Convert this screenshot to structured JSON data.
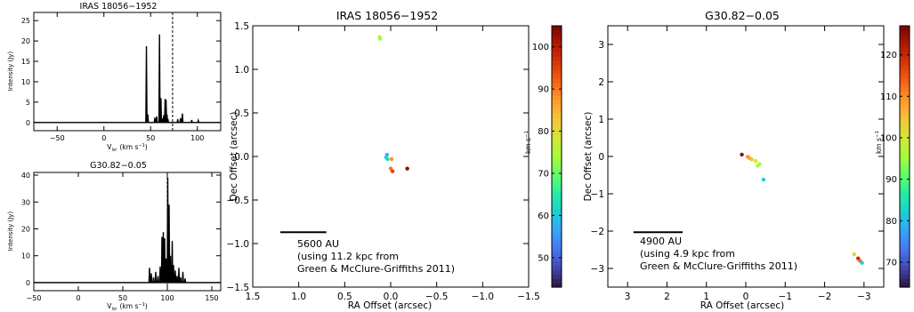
{
  "chart_data": [
    {
      "id": "spec_iras",
      "type": "line",
      "title": "IRAS 18056−1952",
      "xlabel_main": "V",
      "xlabel_sub": "lsr",
      "xlabel_units": "(km s",
      "xlabel_sup": "−1",
      "xlabel_close": ")",
      "ylabel": "Intensity (Jy)",
      "xlim": [
        -75,
        125
      ],
      "ylim": [
        -2,
        27
      ],
      "xticks": [
        -50,
        0,
        50,
        100
      ],
      "xtick_labels": [
        "−50",
        "0",
        "50",
        "100"
      ],
      "yticks": [
        0,
        5,
        10,
        15,
        20,
        25
      ],
      "ytick_labels": [
        "0",
        "5",
        "10",
        "15",
        "20",
        "25"
      ],
      "vline": 73.5,
      "peaks": [
        [
          45.5,
          18.7
        ],
        [
          47.0,
          2.0
        ],
        [
          54.5,
          1.2
        ],
        [
          56.5,
          1.5
        ],
        [
          59.5,
          21.6
        ],
        [
          61.0,
          6.0
        ],
        [
          62.5,
          1.0
        ],
        [
          64.0,
          1.8
        ],
        [
          65.5,
          5.8
        ],
        [
          66.5,
          5.6
        ],
        [
          67.5,
          2.0
        ],
        [
          68.5,
          0.9
        ],
        [
          79.0,
          0.8
        ],
        [
          82.0,
          1.1
        ],
        [
          84.0,
          2.2
        ],
        [
          94.0,
          0.6
        ],
        [
          101.0,
          0.5
        ]
      ]
    },
    {
      "id": "spec_g30",
      "type": "line",
      "title": "G30.82−0.05",
      "xlabel_main": "V",
      "xlabel_sub": "lsr",
      "xlabel_units": "(km s",
      "xlabel_sup": "−1",
      "xlabel_close": ")",
      "ylabel": "Intensity (Jy)",
      "xlim": [
        -50,
        160
      ],
      "ylim": [
        -3,
        41
      ],
      "xticks": [
        -50,
        0,
        50,
        100,
        150
      ],
      "xtick_labels": [
        "−50",
        "0",
        "50",
        "100",
        "150"
      ],
      "yticks": [
        0,
        10,
        20,
        30,
        40
      ],
      "ytick_labels": [
        "0",
        "10",
        "20",
        "30",
        "40"
      ],
      "vline": 100,
      "peaks": [
        [
          80.0,
          5.5
        ],
        [
          82.0,
          3.5
        ],
        [
          84.5,
          2.0
        ],
        [
          87.0,
          4.0
        ],
        [
          89.5,
          2.5
        ],
        [
          92.0,
          6.0
        ],
        [
          94.0,
          17.0
        ],
        [
          95.5,
          18.8
        ],
        [
          97.0,
          16.5
        ],
        [
          98.5,
          9.0
        ],
        [
          100.5,
          39.0
        ],
        [
          102.0,
          29.0
        ],
        [
          103.5,
          10.0
        ],
        [
          105.5,
          15.5
        ],
        [
          107.0,
          6.5
        ],
        [
          109.0,
          4.5
        ],
        [
          111.0,
          2.5
        ],
        [
          113.0,
          5.5
        ],
        [
          115.0,
          2.0
        ],
        [
          117.5,
          4.0
        ],
        [
          120.0,
          1.5
        ]
      ]
    },
    {
      "id": "map_iras",
      "type": "scatter",
      "title": "IRAS 18056−1952",
      "xlabel": "RA Offset (arcsec)",
      "ylabel": "Dec Offset (arcsec)",
      "xlim": [
        1.5,
        -1.5
      ],
      "ylim": [
        -1.5,
        1.5
      ],
      "xticks": [
        1.5,
        1.0,
        0.5,
        0.0,
        -0.5,
        -1.0,
        -1.5
      ],
      "xtick_labels": [
        "1.5",
        "1.0",
        "0.5",
        "0.0",
        "−0.5",
        "−1.0",
        "−1.5"
      ],
      "yticks": [
        -1.5,
        -1.0,
        -0.5,
        0.0,
        0.5,
        1.0,
        1.5
      ],
      "ytick_labels": [
        "−1.5",
        "−1.0",
        "−0.5",
        "0.0",
        "0.5",
        "1.0",
        "1.5"
      ],
      "points": [
        {
          "x": 0.12,
          "y": 1.37,
          "v": 75
        },
        {
          "x": 0.115,
          "y": 1.35,
          "v": 74
        },
        {
          "x": 0.04,
          "y": 0.02,
          "v": 58
        },
        {
          "x": 0.05,
          "y": -0.01,
          "v": 60
        },
        {
          "x": 0.035,
          "y": -0.03,
          "v": 62
        },
        {
          "x": -0.01,
          "y": -0.03,
          "v": 88
        },
        {
          "x": 0.0,
          "y": -0.14,
          "v": 90
        },
        {
          "x": -0.02,
          "y": -0.17,
          "v": 95
        },
        {
          "x": -0.18,
          "y": -0.14,
          "v": 103
        }
      ],
      "scalebar": {
        "ra_start": 1.2,
        "ra_end": 0.7,
        "dec": -0.87
      },
      "note_lines": [
        "5600 AU",
        "(using 11.2 kpc from",
        "Green & McClure-Griffiths 2011)"
      ],
      "colorbar": {
        "label_main": "km s",
        "label_sup": "−1",
        "vmin": 43,
        "vmax": 105,
        "ticks": [
          50,
          60,
          70,
          80,
          90,
          100
        ],
        "tick_labels": [
          "50",
          "60",
          "70",
          "80",
          "90",
          "100"
        ]
      }
    },
    {
      "id": "map_g30",
      "type": "scatter",
      "title": "G30.82−0.05",
      "xlabel": "RA Offset (arcsec)",
      "ylabel": "Dec Offset (arcsec)",
      "xlim": [
        3.5,
        -3.5
      ],
      "ylim": [
        -3.5,
        3.5
      ],
      "xticks": [
        3,
        2,
        1,
        0,
        -1,
        -2,
        -3
      ],
      "xtick_labels": [
        "3",
        "2",
        "1",
        "0",
        "−1",
        "−2",
        "−3"
      ],
      "yticks": [
        -3,
        -2,
        -1,
        0,
        1,
        2,
        3
      ],
      "ytick_labels": [
        "−3",
        "−2",
        "−1",
        "0",
        "1",
        "2",
        "3"
      ],
      "points": [
        {
          "x": 0.1,
          "y": 0.05,
          "v": 125
        },
        {
          "x": -0.05,
          "y": -0.01,
          "v": 110
        },
        {
          "x": -0.1,
          "y": -0.05,
          "v": 108
        },
        {
          "x": -0.15,
          "y": -0.08,
          "v": 105
        },
        {
          "x": -0.25,
          "y": -0.12,
          "v": 100
        },
        {
          "x": -0.35,
          "y": -0.2,
          "v": 98
        },
        {
          "x": -0.3,
          "y": -0.25,
          "v": 95
        },
        {
          "x": -0.45,
          "y": -0.62,
          "v": 82
        },
        {
          "x": -2.75,
          "y": -2.62,
          "v": 103
        },
        {
          "x": -2.85,
          "y": -2.73,
          "v": 120
        },
        {
          "x": -2.9,
          "y": -2.8,
          "v": 113
        },
        {
          "x": -2.95,
          "y": -2.85,
          "v": 82
        }
      ],
      "scalebar": {
        "ra_start": 2.85,
        "ra_end": 1.6,
        "dec": -2.03
      },
      "note_lines": [
        "4900 AU",
        "(using 4.9 kpc from",
        "Green & McClure-Griffiths 2011)"
      ],
      "colorbar": {
        "label_main": "km s",
        "label_sup": "−1",
        "vmin": 64,
        "vmax": 127,
        "ticks": [
          70,
          80,
          90,
          100,
          110,
          120
        ],
        "tick_labels": [
          "70",
          "80",
          "90",
          "100",
          "110",
          "120"
        ]
      }
    }
  ],
  "colormap": [
    "#30123b",
    "#4145ab",
    "#4675ed",
    "#39a2fc",
    "#1bcfd4",
    "#24eca6",
    "#61fc6c",
    "#a4fc3b",
    "#d1e834",
    "#f3c63a",
    "#fe9b2d",
    "#f36315",
    "#d93806",
    "#b11901",
    "#7a0402"
  ]
}
